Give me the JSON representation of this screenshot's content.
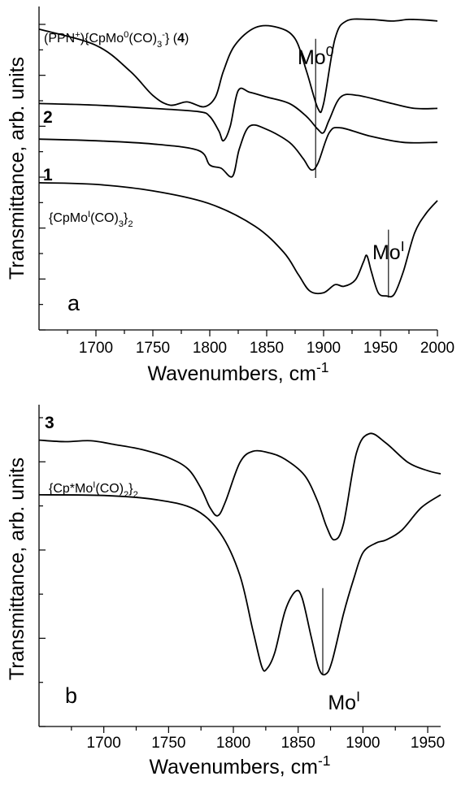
{
  "chart_data": [
    {
      "type": "line",
      "panel_letter": "a",
      "xlabel": "Wavenumbers, cm",
      "xlabel_sup": "-1",
      "ylabel": "Transmittance, arb. units",
      "xlim": [
        1650,
        2000
      ],
      "ylim": [
        0,
        1
      ],
      "xticks": [
        1700,
        1750,
        1800,
        1850,
        1900,
        1950,
        2000
      ],
      "grid": false,
      "series": [
        {
          "label_parts": [
            {
              "t": "(PPN"
            },
            {
              "t": "+",
              "sup": true
            },
            {
              "t": "){CpMo"
            },
            {
              "t": "0",
              "sup": true
            },
            {
              "t": "(CO)"
            },
            {
              "t": "3",
              "sub": true
            },
            {
              "t": "-",
              "sup": true
            },
            {
              "t": "} ("
            },
            {
              "t": "4",
              "bold": true
            },
            {
              "t": ")"
            }
          ],
          "points": [
            [
              1650,
              0.93
            ],
            [
              1700,
              0.88
            ],
            [
              1730,
              0.8
            ],
            [
              1750,
              0.725
            ],
            [
              1765,
              0.695
            ],
            [
              1780,
              0.705
            ],
            [
              1795,
              0.69
            ],
            [
              1805,
              0.72
            ],
            [
              1812,
              0.8
            ],
            [
              1822,
              0.88
            ],
            [
              1840,
              0.935
            ],
            [
              1860,
              0.935
            ],
            [
              1875,
              0.9
            ],
            [
              1885,
              0.8
            ],
            [
              1895,
              0.685
            ],
            [
              1900,
              0.7
            ],
            [
              1910,
              0.9
            ],
            [
              1920,
              0.955
            ],
            [
              1940,
              0.96
            ],
            [
              1960,
              0.955
            ],
            [
              1975,
              0.96
            ],
            [
              1990,
              0.958
            ],
            [
              2000,
              0.955
            ]
          ]
        },
        {
          "label_parts": [
            {
              "t": "2",
              "bold": true
            }
          ],
          "points": [
            [
              1650,
              0.7
            ],
            [
              1700,
              0.695
            ],
            [
              1750,
              0.685
            ],
            [
              1790,
              0.675
            ],
            [
              1800,
              0.66
            ],
            [
              1808,
              0.615
            ],
            [
              1812,
              0.585
            ],
            [
              1818,
              0.63
            ],
            [
              1825,
              0.74
            ],
            [
              1835,
              0.735
            ],
            [
              1850,
              0.72
            ],
            [
              1870,
              0.7
            ],
            [
              1885,
              0.66
            ],
            [
              1895,
              0.62
            ],
            [
              1900,
              0.61
            ],
            [
              1905,
              0.65
            ],
            [
              1915,
              0.72
            ],
            [
              1930,
              0.725
            ],
            [
              1960,
              0.7
            ],
            [
              1980,
              0.685
            ],
            [
              2000,
              0.685
            ]
          ]
        },
        {
          "label_parts": [
            {
              "t": "1",
              "bold": true
            }
          ],
          "points": [
            [
              1650,
              0.59
            ],
            [
              1700,
              0.585
            ],
            [
              1750,
              0.575
            ],
            [
              1790,
              0.555
            ],
            [
              1800,
              0.51
            ],
            [
              1810,
              0.5
            ],
            [
              1820,
              0.475
            ],
            [
              1826,
              0.56
            ],
            [
              1835,
              0.63
            ],
            [
              1850,
              0.62
            ],
            [
              1870,
              0.58
            ],
            [
              1882,
              0.53
            ],
            [
              1889,
              0.495
            ],
            [
              1895,
              0.515
            ],
            [
              1905,
              0.61
            ],
            [
              1915,
              0.625
            ],
            [
              1940,
              0.6
            ],
            [
              1970,
              0.58
            ],
            [
              2000,
              0.58
            ]
          ]
        },
        {
          "label_parts": [
            {
              "t": "{CpMo"
            },
            {
              "t": "I",
              "sup": true
            },
            {
              "t": "(CO)"
            },
            {
              "t": "3",
              "sub": true
            },
            {
              "t": "}"
            },
            {
              "t": "2",
              "sub": true
            }
          ],
          "points": [
            [
              1650,
              0.455
            ],
            [
              1700,
              0.45
            ],
            [
              1750,
              0.43
            ],
            [
              1800,
              0.39
            ],
            [
              1840,
              0.32
            ],
            [
              1865,
              0.24
            ],
            [
              1878,
              0.17
            ],
            [
              1888,
              0.12
            ],
            [
              1900,
              0.115
            ],
            [
              1910,
              0.14
            ],
            [
              1918,
              0.135
            ],
            [
              1928,
              0.155
            ],
            [
              1935,
              0.21
            ],
            [
              1938,
              0.23
            ],
            [
              1942,
              0.18
            ],
            [
              1948,
              0.115
            ],
            [
              1955,
              0.105
            ],
            [
              1962,
              0.11
            ],
            [
              1970,
              0.18
            ],
            [
              1980,
              0.3
            ],
            [
              1990,
              0.36
            ],
            [
              2000,
              0.4
            ]
          ]
        }
      ],
      "markers": [
        {
          "label": "Mo",
          "sup": "0",
          "x": 1893,
          "y_top": 0.9,
          "y_bottom": 0.47
        },
        {
          "label": "Mo",
          "sup": "I",
          "x": 1957,
          "y_top": 0.31,
          "y_bottom": 0.1
        }
      ]
    },
    {
      "type": "line",
      "panel_letter": "b",
      "xlabel": "Wavenumbers, cm",
      "xlabel_sup": "-1",
      "ylabel": "Transmittance, arb. units",
      "xlim": [
        1650,
        1960
      ],
      "ylim": [
        0,
        1
      ],
      "xticks": [
        1700,
        1750,
        1800,
        1850,
        1900,
        1950
      ],
      "grid": false,
      "series": [
        {
          "label_parts": [
            {
              "t": "3",
              "bold": true
            }
          ],
          "points": [
            [
              1650,
              0.89
            ],
            [
              1670,
              0.885
            ],
            [
              1690,
              0.888
            ],
            [
              1710,
              0.875
            ],
            [
              1730,
              0.86
            ],
            [
              1750,
              0.835
            ],
            [
              1765,
              0.8
            ],
            [
              1775,
              0.74
            ],
            [
              1782,
              0.68
            ],
            [
              1788,
              0.655
            ],
            [
              1794,
              0.7
            ],
            [
              1805,
              0.82
            ],
            [
              1815,
              0.855
            ],
            [
              1828,
              0.85
            ],
            [
              1840,
              0.83
            ],
            [
              1855,
              0.78
            ],
            [
              1865,
              0.7
            ],
            [
              1872,
              0.62
            ],
            [
              1878,
              0.58
            ],
            [
              1885,
              0.63
            ],
            [
              1895,
              0.85
            ],
            [
              1905,
              0.91
            ],
            [
              1918,
              0.88
            ],
            [
              1935,
              0.82
            ],
            [
              1950,
              0.795
            ],
            [
              1960,
              0.785
            ]
          ]
        },
        {
          "label_parts": [
            {
              "t": "{Cp*Mo"
            },
            {
              "t": "I",
              "sup": true
            },
            {
              "t": "(CO)"
            },
            {
              "t": "2",
              "sub": true
            },
            {
              "t": "}"
            },
            {
              "t": "2",
              "sub": true
            }
          ],
          "points": [
            [
              1650,
              0.72
            ],
            [
              1700,
              0.718
            ],
            [
              1740,
              0.705
            ],
            [
              1770,
              0.675
            ],
            [
              1790,
              0.6
            ],
            [
              1805,
              0.47
            ],
            [
              1815,
              0.3
            ],
            [
              1822,
              0.185
            ],
            [
              1826,
              0.18
            ],
            [
              1832,
              0.23
            ],
            [
              1840,
              0.36
            ],
            [
              1848,
              0.42
            ],
            [
              1853,
              0.4
            ],
            [
              1860,
              0.28
            ],
            [
              1866,
              0.18
            ],
            [
              1871,
              0.162
            ],
            [
              1876,
              0.2
            ],
            [
              1885,
              0.35
            ],
            [
              1893,
              0.46
            ],
            [
              1900,
              0.54
            ],
            [
              1910,
              0.57
            ],
            [
              1918,
              0.58
            ],
            [
              1930,
              0.61
            ],
            [
              1945,
              0.68
            ],
            [
              1960,
              0.72
            ]
          ]
        }
      ],
      "markers": [
        {
          "label": "Mo",
          "sup": "I",
          "x": 1869,
          "y_top": 0.43,
          "y_bottom": 0.16
        }
      ]
    }
  ]
}
